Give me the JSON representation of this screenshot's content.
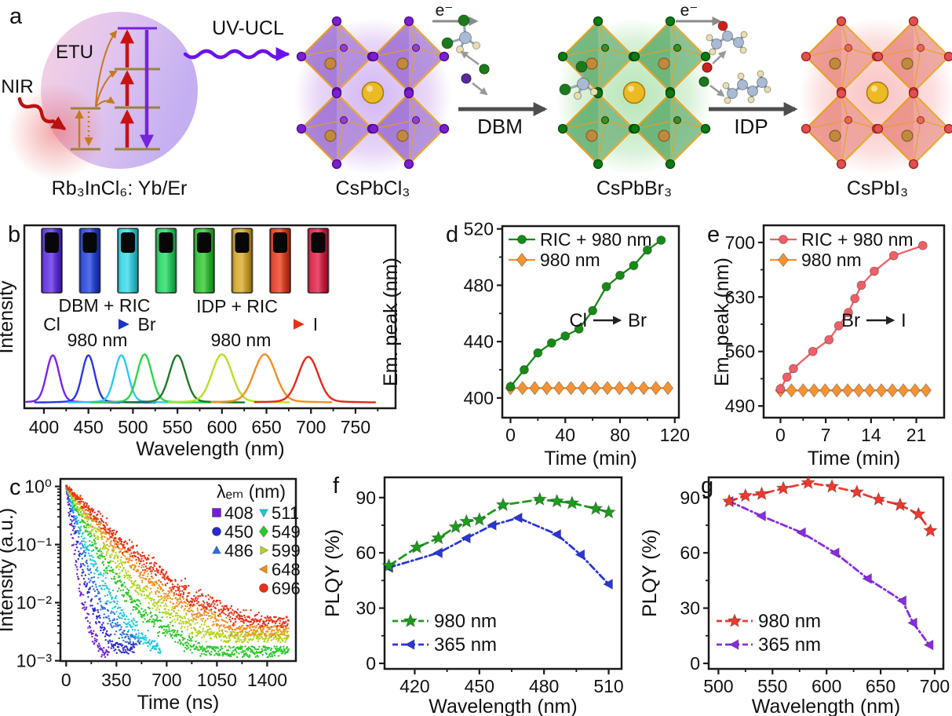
{
  "figure": {
    "background": "#ffffff",
    "panel_letters": [
      "a",
      "b",
      "c",
      "d",
      "e",
      "f",
      "g"
    ]
  },
  "panels": {
    "a": {
      "label": "a",
      "nir": "NIR",
      "etu": "ETU",
      "uv_ucl": "UV-UCL",
      "upconverter": "Rb₃InCl₆: Yb/Er",
      "electron": "e⁻",
      "reaction_1": "DBM",
      "reaction_2": "IDP",
      "crystals": [
        {
          "name": "CsPbCl₃",
          "fill": "#9a6ad0",
          "halide": "#7a1fd0",
          "halide_dark": "#4a0a90",
          "glow": "#b07ae8"
        },
        {
          "name": "CsPbBr₃",
          "fill": "#5aaa68",
          "halide": "#0d7a14",
          "halide_dark": "#05480a",
          "glow": "#7ed07e"
        },
        {
          "name": "CsPbI₃",
          "fill": "#e8897f",
          "halide": "#e05050",
          "halide_dark": "#a02020",
          "glow": "#f49090"
        }
      ],
      "colors": {
        "nir_arrow": "#b91111",
        "uv_arrow": "#6a11ee",
        "etu_arrow": "#c87820",
        "level_line": "#9c8338",
        "red_arrow": "#cc1111",
        "purple_arrow": "#7722dd",
        "gold_edge": "#e8a01c",
        "cs_ball": "#ecba22",
        "pb_ball": "#c08a3e"
      }
    }
  },
  "chart_data": [
    {
      "id": "b",
      "type": "line",
      "panel_label": "b",
      "xlabel": "Wavelength (nm)",
      "ylabel": "Intensity",
      "xlim": [
        378,
        795
      ],
      "xticks": [
        400,
        450,
        500,
        550,
        600,
        650,
        700,
        750
      ],
      "grid": false,
      "legend_position": "none",
      "series": [
        {
          "name": "peak 410 nm",
          "peak_nm": 410,
          "sigma": 7,
          "height": 0.95,
          "color": "#7a22ee"
        },
        {
          "name": "peak 450 nm",
          "peak_nm": 450,
          "sigma": 7,
          "height": 0.95,
          "color": "#2a35e8"
        },
        {
          "name": "peak 487 nm",
          "peak_nm": 487,
          "sigma": 7.5,
          "height": 0.95,
          "color": "#25cdf0"
        },
        {
          "name": "peak 513 nm",
          "peak_nm": 513,
          "sigma": 8,
          "height": 0.97,
          "color": "#28d84a"
        },
        {
          "name": "peak 550 nm",
          "peak_nm": 550,
          "sigma": 9,
          "height": 0.95,
          "color": "#1a7a28"
        },
        {
          "name": "peak 600 nm",
          "peak_nm": 600,
          "sigma": 11,
          "height": 0.97,
          "color": "#b8e020"
        },
        {
          "name": "peak 648 nm",
          "peak_nm": 648,
          "sigma": 12,
          "height": 0.97,
          "color": "#f09020"
        },
        {
          "name": "peak 697 nm",
          "peak_nm": 697,
          "sigma": 11,
          "height": 0.92,
          "color": "#e82818"
        }
      ],
      "cuvette_colors": [
        "#5a28e8",
        "#1f3fe0",
        "#2fd8e8",
        "#1fd860",
        "#28c628",
        "#d8a820",
        "#e83818",
        "#e01840"
      ],
      "labels": {
        "dbm_ric": "DBM + RIC",
        "idp_ric": "IDP + RIC",
        "cl": "Cl",
        "br": "Br",
        "i": "I",
        "nm980_left": "980 nm",
        "nm980_right": "980 nm"
      }
    },
    {
      "id": "c",
      "type": "scatter",
      "panel_label": "c",
      "xlabel": "Time (ns)",
      "ylabel": "Intensity (a.u.)",
      "xlim": [
        -40,
        1600
      ],
      "xticks": [
        0,
        350,
        700,
        1050,
        1400
      ],
      "ylog": true,
      "ytick_labels": [
        "10⁰",
        "10⁻¹",
        "10⁻²",
        "10⁻³"
      ],
      "legend_title": "λₑₘ (nm)",
      "series": [
        {
          "label": "408",
          "color": "#6e1fd8",
          "marker": "square",
          "tau_ns": 20,
          "floor": 0.00135,
          "tmax": 300
        },
        {
          "label": "450",
          "color": "#2a2ad0",
          "marker": "circle",
          "tau_ns": 30,
          "floor": 0.0016,
          "tmax": 480
        },
        {
          "label": "486",
          "color": "#2f6fe0",
          "marker": "tri-up",
          "tau_ns": 42,
          "floor": 0.0023,
          "tmax": 520
        },
        {
          "label": "511",
          "color": "#1fc8dc",
          "marker": "tri-down",
          "tau_ns": 56,
          "floor": 0.00145,
          "tmax": 660
        },
        {
          "label": "549",
          "color": "#28c828",
          "marker": "diamond",
          "tau_ns": 80,
          "floor": 0.0014,
          "tmax": 1550
        },
        {
          "label": "599",
          "color": "#b4d41e",
          "marker": "tri-right",
          "tau_ns": 105,
          "floor": 0.0025,
          "tmax": 1550
        },
        {
          "label": "648",
          "color": "#f09020",
          "marker": "tri-left",
          "tau_ns": 135,
          "floor": 0.0032,
          "tmax": 1550
        },
        {
          "label": "696",
          "color": "#e83018",
          "marker": "circle",
          "tau_ns": 165,
          "floor": 0.0046,
          "tmax": 1550
        }
      ]
    },
    {
      "id": "d",
      "type": "line",
      "panel_label": "d",
      "xlabel": "Time (min)",
      "ylabel": "Em. peak (nm)",
      "xticks": [
        0,
        40,
        80,
        120
      ],
      "yticks": [
        400,
        440,
        480,
        520
      ],
      "xlim": [
        -6,
        123
      ],
      "ylim": [
        386,
        522
      ],
      "series": [
        {
          "name": "RIC + 980 nm",
          "color": "#178a17",
          "marker": "circle",
          "x": [
            0,
            10,
            20,
            30,
            40,
            50,
            60,
            70,
            80,
            90,
            100,
            110
          ],
          "y": [
            408,
            420,
            432,
            439,
            444,
            449,
            462,
            479,
            487,
            494,
            505,
            512
          ]
        },
        {
          "name": "980 nm",
          "color": "#f59233",
          "marker": "diamond",
          "x": [
            0,
            8.8,
            17.7,
            26.5,
            35.4,
            44.2,
            53.1,
            61.9,
            70.8,
            79.6,
            88.5,
            97.3,
            106.2,
            115
          ],
          "y": [
            407,
            407,
            407,
            407,
            407,
            407,
            407,
            407,
            407,
            407,
            407,
            407,
            407,
            407
          ]
        }
      ],
      "annotation": {
        "from": "Cl",
        "to": "Br"
      }
    },
    {
      "id": "e",
      "type": "line",
      "panel_label": "e",
      "xlabel": "Time (min)",
      "ylabel": "Em. peak (nm)",
      "xticks": [
        0,
        7,
        14,
        21
      ],
      "yticks": [
        490,
        560,
        630,
        700
      ],
      "xlim": [
        -2.6,
        25.3
      ],
      "ylim": [
        475,
        722
      ],
      "series": [
        {
          "name": "RIC + 980 nm",
          "color": "#ef5f68",
          "marker": "circle",
          "x": [
            0,
            1,
            2,
            5,
            7.5,
            9,
            10.5,
            11.5,
            12.5,
            14.5,
            17.5,
            22
          ],
          "y": [
            512,
            527,
            538,
            560,
            575,
            593,
            610,
            628,
            645,
            663,
            683,
            696
          ]
        },
        {
          "name": "980 nm",
          "color": "#f59233",
          "marker": "diamond",
          "x": [
            0,
            1.7,
            3.5,
            5.2,
            6.9,
            8.7,
            10.4,
            12.1,
            13.8,
            15.6,
            17.3,
            19,
            20.8,
            22.5
          ],
          "y": [
            510,
            510,
            510,
            510,
            510,
            510,
            510,
            510,
            510,
            510,
            510,
            510,
            510,
            510
          ]
        }
      ],
      "annotation": {
        "from": "Br",
        "to": "I"
      }
    },
    {
      "id": "f",
      "type": "line",
      "panel_label": "f",
      "xlabel": "Wavelength (nm)",
      "ylabel": "PLQY (%)",
      "xticks": [
        420,
        450,
        480,
        510
      ],
      "yticks": [
        0,
        30,
        60,
        90
      ],
      "xlim": [
        406,
        516
      ],
      "ylim": [
        -3,
        101
      ],
      "series": [
        {
          "name": "980 nm",
          "color": "#1e9a1e",
          "marker": "star",
          "dash": "10 6",
          "x": [
            408,
            421,
            431,
            439,
            444,
            450,
            461,
            478,
            486,
            493,
            504,
            510
          ],
          "y": [
            53,
            63,
            68,
            74,
            77,
            78,
            86,
            89,
            88,
            87,
            84,
            82
          ]
        },
        {
          "name": "365 nm",
          "color": "#2a35e0",
          "marker": "tri-left",
          "dash": "8 4 2 4",
          "x": [
            408,
            431,
            444,
            456,
            468,
            486,
            497,
            510
          ],
          "y": [
            52,
            60,
            68,
            75,
            79,
            70,
            59,
            43
          ]
        }
      ]
    },
    {
      "id": "g",
      "type": "line",
      "panel_label": "g",
      "xlabel": "Wavelength (nm)",
      "ylabel": "PLQY (%)",
      "xticks": [
        500,
        550,
        600,
        650,
        700
      ],
      "yticks": [
        0,
        30,
        60,
        90
      ],
      "xlim": [
        491,
        708
      ],
      "ylim": [
        -3,
        101
      ],
      "series": [
        {
          "name": "980 nm",
          "color": "#ee3a2e",
          "marker": "star",
          "dash": "10 6",
          "x": [
            510,
            525,
            540,
            560,
            583,
            605,
            628,
            648,
            668,
            685,
            696
          ],
          "y": [
            88,
            91,
            92,
            95,
            98,
            96,
            93,
            89,
            86,
            81,
            72
          ]
        },
        {
          "name": "365 nm",
          "color": "#8a2be2",
          "marker": "tri-left",
          "dash": "8 4 2 4",
          "x": [
            510,
            540,
            577,
            608,
            638,
            670,
            680,
            695
          ],
          "y": [
            88,
            80,
            71,
            60,
            46,
            34,
            22,
            10
          ]
        }
      ]
    }
  ]
}
